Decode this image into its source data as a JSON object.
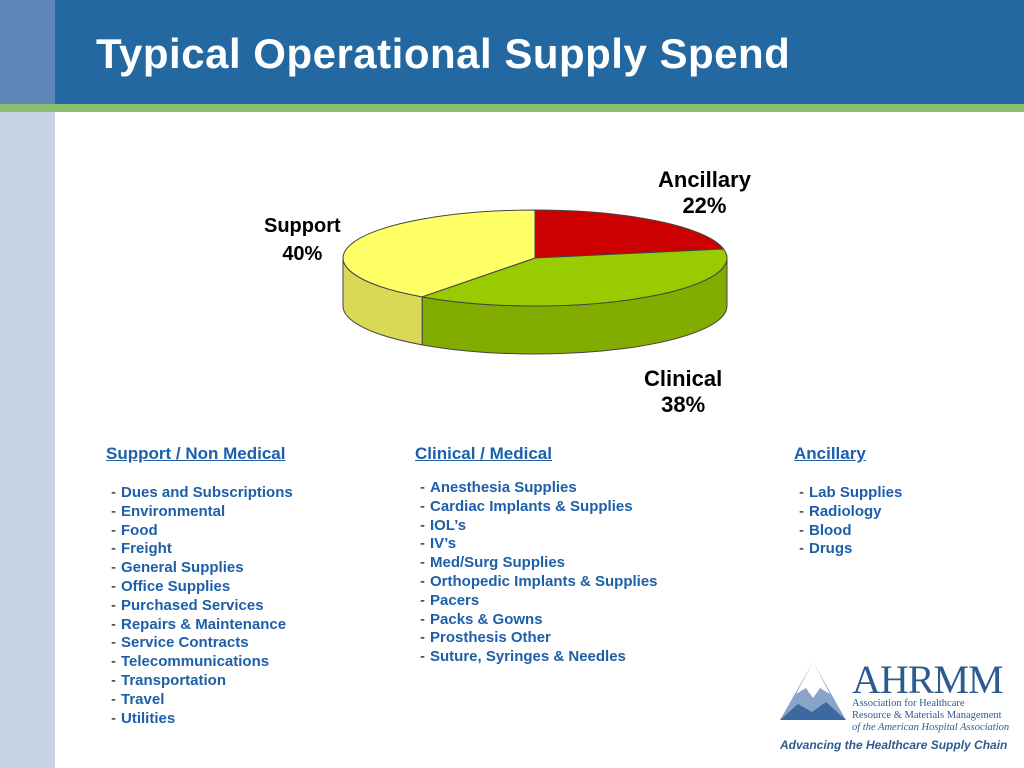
{
  "title": "Typical Operational Supply Spend",
  "chart_data": {
    "type": "pie",
    "style": "3d",
    "slices": [
      {
        "label": "Ancillary",
        "value": 22,
        "display": "22%",
        "color": "#cc0000"
      },
      {
        "label": "Clinical",
        "value": 38,
        "display": "38%",
        "color": "#99cc00"
      },
      {
        "label": "Support",
        "value": 40,
        "display": "40%",
        "color": "#ffff66"
      }
    ]
  },
  "columns": [
    {
      "title": "Support / Non Medical",
      "dash": "-",
      "items": [
        "Dues and Subscriptions",
        "Environmental",
        "Food",
        "Freight",
        "General Supplies",
        "Office Supplies",
        "Purchased Services",
        "Repairs & Maintenance",
        "Service Contracts",
        "Telecommunications",
        "Transportation",
        "Travel",
        "Utilities"
      ]
    },
    {
      "title": "Clinical / Medical",
      "dash": "-",
      "items": [
        "Anesthesia Supplies",
        "Cardiac Implants & Supplies",
        "IOL’s",
        "IV’s",
        "Med/Surg Supplies",
        "Orthopedic Implants & Supplies",
        "Pacers",
        "Packs & Gowns",
        "Prosthesis Other",
        "Suture, Syringes & Needles"
      ]
    },
    {
      "title": "Ancillary",
      "dash": "-",
      "items": [
        "Lab Supplies",
        "Radiology",
        "Blood",
        "Drugs"
      ]
    }
  ],
  "logo": {
    "name": "AHRMM",
    "line1": "Association for Healthcare",
    "line2": "Resource & Materials Management",
    "line3": "of the American Hospital Association",
    "tagline": "Advancing the Healthcare Supply Chain"
  }
}
